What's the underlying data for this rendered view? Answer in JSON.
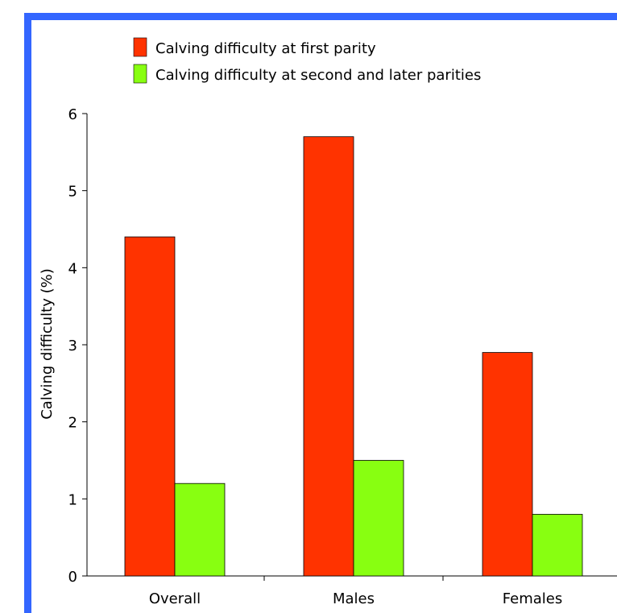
{
  "colors": {
    "border": "#3366ff",
    "first_parity": "#ff3300",
    "later_parity": "#88ff11",
    "axis": "#000000",
    "background": "#ffffff"
  },
  "chart_data": {
    "type": "bar",
    "title": "",
    "xlabel": "",
    "ylabel": "Calving difficulty (%)",
    "categories": [
      "Overall",
      "Males",
      "Females"
    ],
    "ylim": [
      0,
      6
    ],
    "yticks": [
      0,
      1,
      2,
      3,
      4,
      5,
      6
    ],
    "grid": false,
    "legend_position": "top",
    "series": [
      {
        "name": "Calving difficulty at first parity",
        "values": [
          4.4,
          5.7,
          2.9
        ],
        "color": "#ff3300"
      },
      {
        "name": "Calving difficulty at second and later parities",
        "values": [
          1.2,
          1.5,
          0.8
        ],
        "color": "#88ff11"
      }
    ]
  }
}
